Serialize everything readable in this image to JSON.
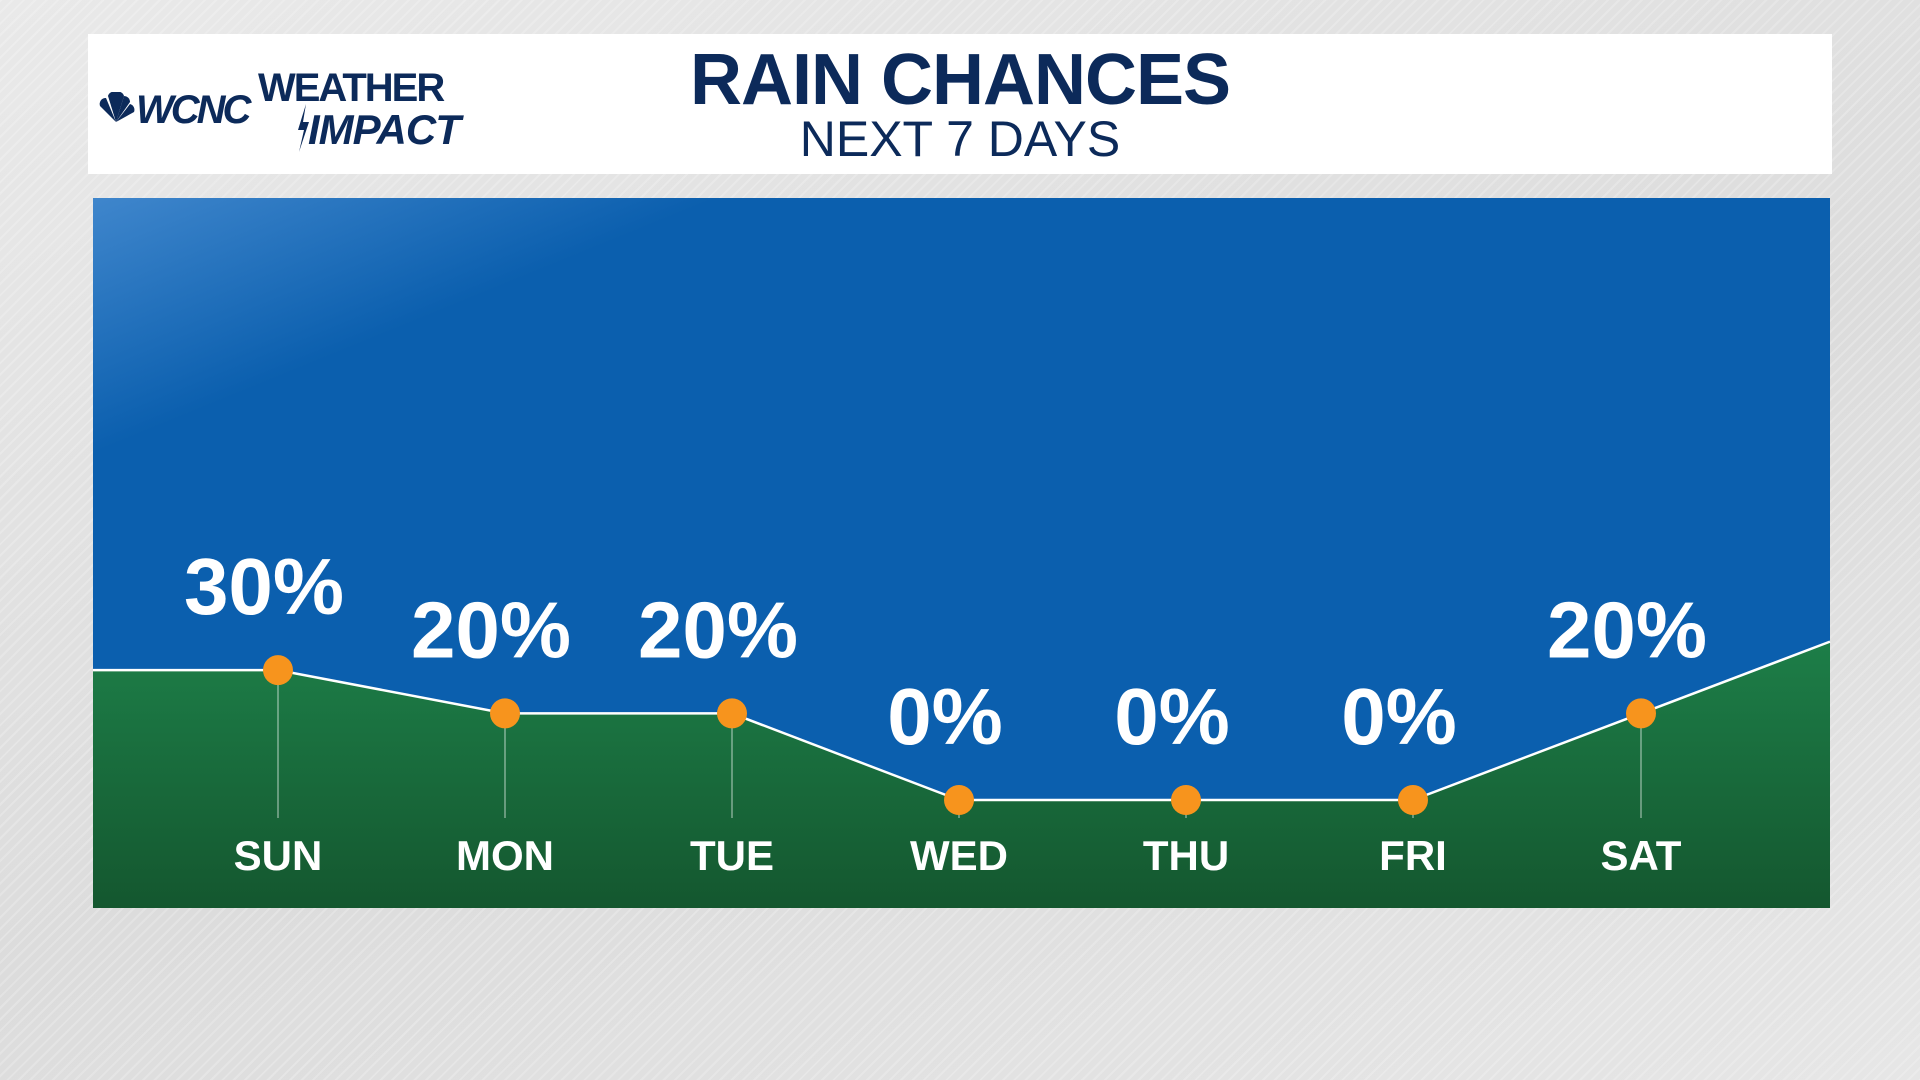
{
  "header": {
    "title": "RAIN CHANCES",
    "subtitle": "NEXT 7 DAYS",
    "logo": {
      "station": "WCNC",
      "brand_top": "WEATHER",
      "brand_bottom": "IMPACT"
    }
  },
  "colors": {
    "sky_top": "#2e7fd0",
    "sky": "#0b5fae",
    "ground": "#1b7a45",
    "ground_dark": "#14572f",
    "line": "#ffffff",
    "marker": "#f7941d",
    "title": "#0c2a5a"
  },
  "chart_data": {
    "type": "area",
    "title": "RAIN CHANCES",
    "subtitle": "NEXT 7 DAYS",
    "categories": [
      "SUN",
      "MON",
      "TUE",
      "WED",
      "THU",
      "FRI",
      "SAT"
    ],
    "values": [
      30,
      20,
      20,
      0,
      0,
      0,
      20
    ],
    "labels": [
      "30%",
      "20%",
      "20%",
      "0%",
      "0%",
      "0%",
      "20%"
    ],
    "unit": "%",
    "grid": false,
    "legend": "none"
  }
}
